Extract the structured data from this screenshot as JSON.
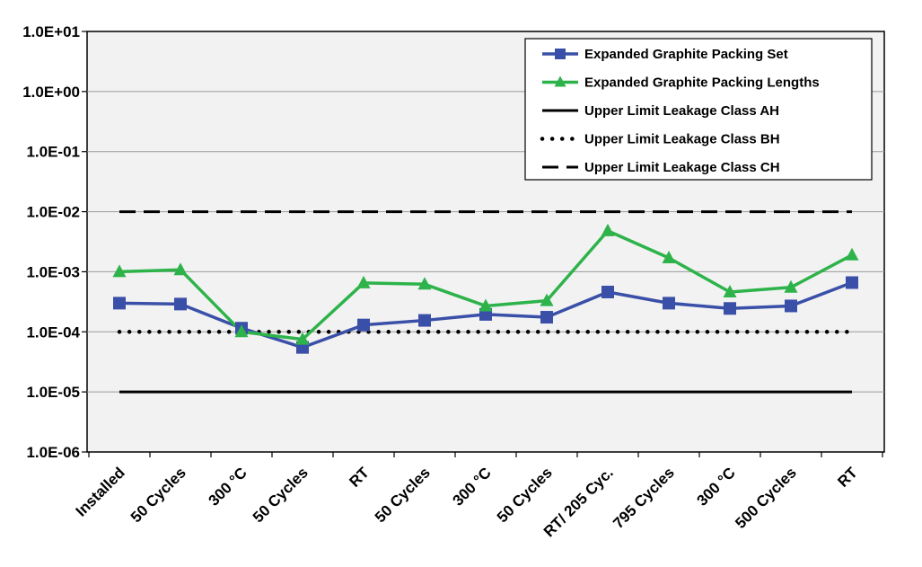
{
  "chart_data": {
    "type": "line",
    "title": "",
    "xlabel": "",
    "ylabel": "",
    "yscale": "log",
    "ylim": [
      1e-06,
      10
    ],
    "grid": true,
    "legend_position": "top-right",
    "y_tick_labels": [
      "1.0E+01",
      "1.0E+00",
      "1.0E-01",
      "1.0E-02",
      "1.0E-03",
      "1.0E-04",
      "1.0E-05",
      "1.0E-06"
    ],
    "y_tick_values": [
      10,
      1,
      0.1,
      0.01,
      0.001,
      0.0001,
      1e-05,
      1e-06
    ],
    "categories": [
      "Installed",
      "50 Cycles",
      "300 °C",
      "50 Cycles",
      "RT",
      "50 Cycles",
      "300 °C",
      "50 Cycles",
      "RT/ 205 Cyc.",
      "795 Cycles",
      "300 °C",
      "500 Cycles",
      "RT"
    ],
    "series": [
      {
        "name": "Expanded Graphite Packing Set",
        "color": "#3a4fa8",
        "marker": "square",
        "values": [
          0.0003,
          0.00029,
          0.000115,
          5.5e-05,
          0.00013,
          0.000155,
          0.000195,
          0.000175,
          0.00046,
          0.0003,
          0.000245,
          0.00027,
          0.00066
        ]
      },
      {
        "name": "Expanded Graphite Packing Lengths",
        "color": "#2db34a",
        "marker": "triangle",
        "values": [
          0.001,
          0.00108,
          0.0001,
          7.5e-05,
          0.00065,
          0.00062,
          0.00027,
          0.00033,
          0.0048,
          0.0017,
          0.00046,
          0.00055,
          0.0019
        ]
      },
      {
        "name": "Upper Limit Leakage Class AH",
        "color": "#000000",
        "linestyle": "solid",
        "constant": 1e-05
      },
      {
        "name": "Upper Limit Leakage Class BH",
        "color": "#000000",
        "linestyle": "dotted",
        "constant": 0.0001
      },
      {
        "name": "Upper Limit Leakage Class CH",
        "color": "#000000",
        "linestyle": "dashed",
        "constant": 0.01
      }
    ]
  }
}
